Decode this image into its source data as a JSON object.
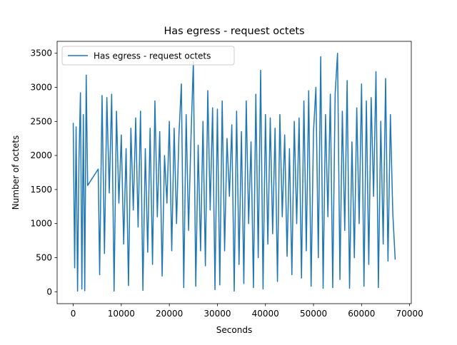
{
  "chart_data": {
    "type": "line",
    "title": "Has egress - request octets",
    "x_label": "Seconds",
    "y_label": "Number of octets",
    "x": [
      0,
      300,
      600,
      900,
      1200,
      1500,
      1800,
      2100,
      2400,
      2700,
      3000,
      5200,
      5500,
      6000,
      6500,
      7000,
      7500,
      8000,
      8500,
      9000,
      9500,
      10000,
      10500,
      11000,
      11500,
      12000,
      12500,
      13000,
      13500,
      14000,
      14500,
      15000,
      15500,
      16000,
      16500,
      17000,
      17500,
      18000,
      18500,
      19000,
      19500,
      20000,
      20500,
      21000,
      21500,
      22000,
      22500,
      23000,
      23500,
      24000,
      24500,
      25000,
      25500,
      26000,
      26500,
      27000,
      27500,
      28000,
      28500,
      29000,
      29500,
      30000,
      30500,
      31000,
      31500,
      32000,
      32500,
      33000,
      33500,
      34000,
      34500,
      35000,
      35500,
      36000,
      36500,
      37000,
      37500,
      38000,
      38500,
      39000,
      39500,
      40000,
      40500,
      41000,
      41500,
      42000,
      42500,
      43000,
      43500,
      44000,
      44500,
      45000,
      45500,
      46000,
      46500,
      47000,
      47500,
      48000,
      48500,
      49000,
      49500,
      50000,
      50500,
      51000,
      51500,
      52000,
      52500,
      53000,
      53500,
      54000,
      54500,
      55000,
      55500,
      56000,
      56500,
      57000,
      57500,
      58000,
      58500,
      59000,
      59500,
      60000,
      60500,
      61000,
      61500,
      62000,
      62500,
      63000,
      63500,
      64000,
      64500,
      65000,
      65500,
      66000,
      66500,
      67000
    ],
    "series": [
      {
        "name": "Has egress - request octets",
        "color": "#1f77b4",
        "values": [
          2480,
          350,
          2420,
          10,
          1950,
          2920,
          40,
          2600,
          15,
          3180,
          1560,
          1800,
          250,
          2880,
          560,
          2850,
          1450,
          2900,
          10,
          2650,
          1300,
          2300,
          700,
          2100,
          90,
          2400,
          1200,
          2550,
          950,
          2650,
          20,
          2100,
          580,
          2400,
          400,
          2800,
          1100,
          2350,
          230,
          2000,
          1300,
          2500,
          600,
          2400,
          1000,
          2300,
          3050,
          60,
          2600,
          900,
          2250,
          3380,
          80,
          2150,
          600,
          2500,
          380,
          2950,
          1200,
          2700,
          30,
          2680,
          100,
          2800,
          600,
          2250,
          1400,
          2450,
          10,
          2650,
          400,
          2350,
          120,
          2800,
          1000,
          2200,
          60,
          2900,
          500,
          3250,
          40,
          2600,
          700,
          2550,
          850,
          2400,
          150,
          2600,
          1100,
          2300,
          520,
          2100,
          250,
          2500,
          1000,
          2550,
          200,
          2800,
          600,
          2950,
          80,
          2350,
          3000,
          500,
          3450,
          50,
          2600,
          1100,
          2900,
          60,
          2900,
          3500,
          180,
          2650,
          900,
          3100,
          50,
          2200,
          500,
          2700,
          1000,
          3050,
          80,
          2800,
          400,
          2850,
          1400,
          3230,
          60,
          2500,
          700,
          3130,
          450,
          2600,
          1150,
          470
        ]
      }
    ],
    "xlim": [
      -3350,
      70350
    ],
    "xticks": [
      0,
      10000,
      20000,
      30000,
      40000,
      50000,
      60000,
      70000
    ],
    "ylim": [
      -175,
      3675
    ],
    "yticks": [
      0,
      500,
      1000,
      1500,
      2000,
      2500,
      3000,
      3500
    ],
    "legend": "upper left"
  }
}
